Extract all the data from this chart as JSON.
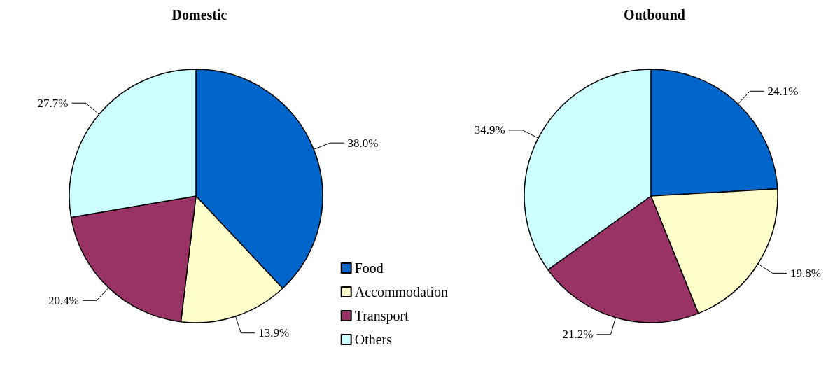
{
  "chart_data": [
    {
      "type": "pie",
      "title": "Domestic",
      "categories": [
        "Food",
        "Accommodation",
        "Transport",
        "Others"
      ],
      "values": [
        38.0,
        13.9,
        20.4,
        27.7
      ],
      "colors": [
        "#0066cc",
        "#ffffcc",
        "#993366",
        "#ccffff"
      ],
      "value_labels": [
        "38.0%",
        "13.9%",
        "20.4%",
        "27.7%"
      ],
      "legend": "bottom right"
    },
    {
      "type": "pie",
      "title": "Outbound",
      "categories": [
        null,
        null,
        null,
        null
      ],
      "values": [
        24.1,
        19.8,
        21.2,
        34.9
      ],
      "colors": [
        "#0066cc",
        "#ffffcc",
        "#993366",
        "#ccffff"
      ],
      "value_labels": [
        "24.1%",
        "19.8%",
        "21.2%",
        "34.9%"
      ],
      "legend": false
    }
  ]
}
